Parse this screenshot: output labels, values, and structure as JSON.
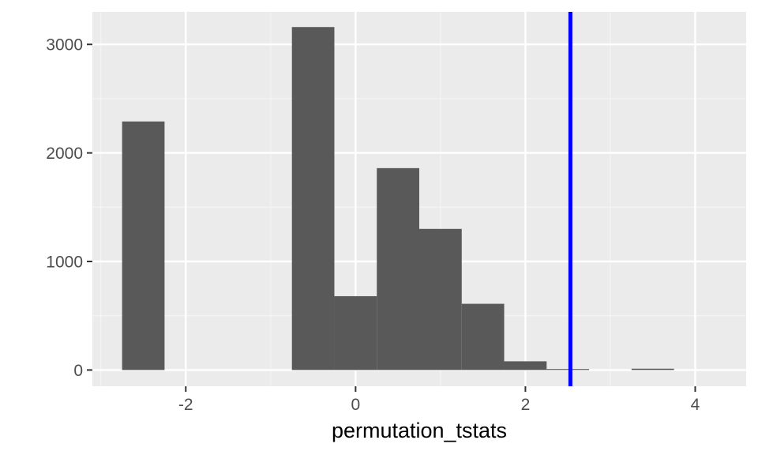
{
  "chart_data": {
    "type": "bar",
    "subtype": "histogram",
    "xlabel": "permutation_tstats",
    "ylabel": "",
    "xlim": [
      -3.1,
      4.6
    ],
    "ylim": [
      -150,
      3300
    ],
    "xticks": [
      -2,
      0,
      2,
      4
    ],
    "xtick_labels": [
      "-2",
      "0",
      "2",
      "4"
    ],
    "yticks": [
      0,
      1000,
      2000,
      3000
    ],
    "ytick_labels": [
      "0",
      "1000",
      "2000",
      "3000"
    ],
    "grid": true,
    "legend": "none",
    "bin_width": 0.5,
    "bins": [
      {
        "x0": -2.75,
        "x1": -2.25,
        "count": 2290
      },
      {
        "x0": -2.25,
        "x1": -1.75,
        "count": 0
      },
      {
        "x0": -1.75,
        "x1": -1.25,
        "count": 0
      },
      {
        "x0": -1.25,
        "x1": -0.75,
        "count": 0
      },
      {
        "x0": -0.75,
        "x1": -0.25,
        "count": 3160
      },
      {
        "x0": -0.25,
        "x1": 0.25,
        "count": 680
      },
      {
        "x0": 0.25,
        "x1": 0.75,
        "count": 1860
      },
      {
        "x0": 0.75,
        "x1": 1.25,
        "count": 1300
      },
      {
        "x0": 1.25,
        "x1": 1.75,
        "count": 610
      },
      {
        "x0": 1.75,
        "x1": 2.25,
        "count": 80
      },
      {
        "x0": 2.25,
        "x1": 2.75,
        "count": 8
      },
      {
        "x0": 2.75,
        "x1": 3.25,
        "count": 0
      },
      {
        "x0": 3.25,
        "x1": 3.75,
        "count": 12
      }
    ],
    "vline": {
      "x": 2.53,
      "color": "#0000ff"
    },
    "colors": {
      "bar_fill": "#595959",
      "panel_background": "#ebebeb",
      "grid_major": "#ffffff",
      "grid_minor": "#f5f5f5",
      "tick_mark": "#333333"
    }
  }
}
